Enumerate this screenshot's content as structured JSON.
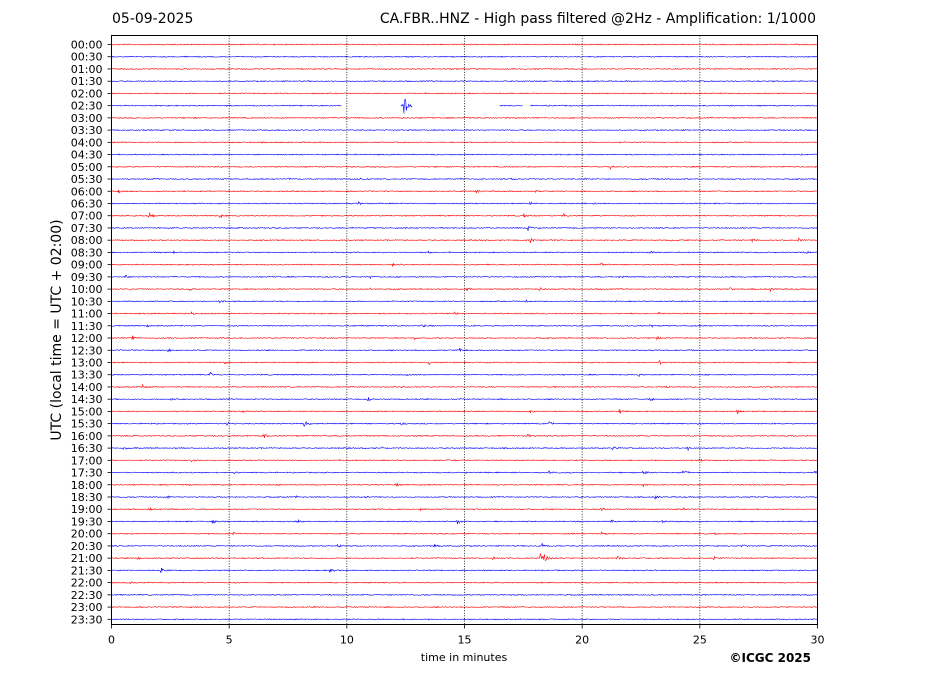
{
  "header": {
    "date": "05-09-2025",
    "title": "CA.FBR..HNZ - High pass filtered @2Hz - Amplification: 1/1000"
  },
  "footer": {
    "copyright": "©ICGC 2025"
  },
  "chart_data": {
    "type": "line",
    "subtype": "helicorder",
    "xlabel": "time in minutes",
    "ylabel": "UTC (local time = UTC + 02:00)",
    "xlim": [
      0,
      30
    ],
    "xticks": [
      0,
      5,
      10,
      15,
      20,
      25,
      30
    ],
    "x_gridlines": [
      5,
      10,
      15,
      20,
      25
    ],
    "grid": "dotted vertical",
    "trace_colors": [
      "#ff0000",
      "#0000ff"
    ],
    "traces": [
      {
        "label": "00:00",
        "color": "#ff0000",
        "events": []
      },
      {
        "label": "00:30",
        "color": "#0000ff",
        "events": []
      },
      {
        "label": "01:00",
        "color": "#ff0000",
        "events": []
      },
      {
        "label": "01:30",
        "color": "#0000ff",
        "events": []
      },
      {
        "label": "02:00",
        "color": "#ff0000",
        "events": []
      },
      {
        "label": "02:30",
        "color": "#0000ff",
        "gaps": [
          [
            9.8,
            12.3
          ],
          [
            12.8,
            16.5
          ],
          [
            17.5,
            17.8
          ]
        ],
        "events": [
          [
            12.4,
            8
          ]
        ]
      },
      {
        "label": "03:00",
        "color": "#ff0000",
        "events": []
      },
      {
        "label": "03:30",
        "color": "#0000ff",
        "events": []
      },
      {
        "label": "04:00",
        "color": "#ff0000",
        "events": []
      },
      {
        "label": "04:30",
        "color": "#0000ff",
        "events": []
      },
      {
        "label": "05:00",
        "color": "#ff0000",
        "events": [
          [
            21.2,
            1.5
          ]
        ]
      },
      {
        "label": "05:30",
        "color": "#0000ff",
        "events": [
          [
            1.8,
            1.2
          ],
          [
            7.5,
            1
          ],
          [
            10.5,
            1.5
          ],
          [
            14.8,
            1.2
          ],
          [
            17,
            1
          ],
          [
            20.1,
            1.3
          ]
        ]
      },
      {
        "label": "06:00",
        "color": "#ff0000",
        "events": [
          [
            0.3,
            1.5
          ],
          [
            15.5,
            1.5
          ],
          [
            18,
            1
          ]
        ]
      },
      {
        "label": "06:30",
        "color": "#0000ff",
        "events": [
          [
            10.5,
            1.5
          ],
          [
            17.8,
            1.5
          ],
          [
            20.5,
            1
          ]
        ]
      },
      {
        "label": "07:00",
        "color": "#ff0000",
        "events": [
          [
            1.6,
            3
          ],
          [
            4.6,
            3
          ],
          [
            17.5,
            1.5
          ],
          [
            19.2,
            1.8
          ]
        ]
      },
      {
        "label": "07:30",
        "color": "#0000ff",
        "events": [
          [
            17.7,
            2
          ]
        ]
      },
      {
        "label": "08:00",
        "color": "#ff0000",
        "events": [
          [
            17.8,
            2
          ],
          [
            23.8,
            1.5
          ],
          [
            27.2,
            2
          ],
          [
            29.2,
            1.5
          ]
        ]
      },
      {
        "label": "08:30",
        "color": "#0000ff",
        "events": [
          [
            2.6,
            1.5
          ],
          [
            13.5,
            1.5
          ],
          [
            22.9,
            1.5
          ],
          [
            29.5,
            2
          ]
        ]
      },
      {
        "label": "09:00",
        "color": "#ff0000",
        "events": [
          [
            11.9,
            1.5
          ],
          [
            20.8,
            1.5
          ]
        ]
      },
      {
        "label": "09:30",
        "color": "#0000ff",
        "events": [
          [
            0.6,
            2
          ],
          [
            9.2,
            1
          ],
          [
            11,
            1.5
          ],
          [
            21.6,
            1.5
          ]
        ]
      },
      {
        "label": "10:00",
        "color": "#ff0000",
        "events": [
          [
            3.3,
            1.5
          ],
          [
            11,
            1
          ],
          [
            15.1,
            2.5
          ],
          [
            18.2,
            1.5
          ],
          [
            26.3,
            1.5
          ],
          [
            28,
            2
          ]
        ]
      },
      {
        "label": "10:30",
        "color": "#0000ff",
        "events": [
          [
            4.6,
            1.5
          ],
          [
            17.6,
            1.8
          ]
        ]
      },
      {
        "label": "11:00",
        "color": "#ff0000",
        "events": [
          [
            3.4,
            1.5
          ],
          [
            14.6,
            1.5
          ],
          [
            23.2,
            1.5
          ]
        ]
      },
      {
        "label": "11:30",
        "color": "#0000ff",
        "events": [
          [
            1.5,
            1.5
          ],
          [
            13.2,
            1.8
          ],
          [
            22.9,
            1.5
          ]
        ]
      },
      {
        "label": "12:00",
        "color": "#ff0000",
        "events": [
          [
            0.9,
            1.5
          ],
          [
            12.9,
            1.5
          ],
          [
            23.2,
            1.5
          ]
        ]
      },
      {
        "label": "12:30",
        "color": "#0000ff",
        "events": [
          [
            2.4,
            1.5
          ],
          [
            14.8,
            1.8
          ],
          [
            24.5,
            1.5
          ]
        ]
      },
      {
        "label": "13:00",
        "color": "#ff0000",
        "events": [
          [
            4.8,
            1.5
          ],
          [
            13.5,
            1.5
          ],
          [
            23.3,
            1.5
          ]
        ]
      },
      {
        "label": "13:30",
        "color": "#0000ff",
        "events": [
          [
            4.2,
            1.5
          ],
          [
            12.5,
            1.5
          ],
          [
            22.4,
            1.5
          ]
        ]
      },
      {
        "label": "14:00",
        "color": "#ff0000",
        "events": [
          [
            1.3,
            1.8
          ],
          [
            12.2,
            1.5
          ],
          [
            23.5,
            1.5
          ]
        ]
      },
      {
        "label": "14:30",
        "color": "#0000ff",
        "events": [
          [
            2.5,
            1.5
          ],
          [
            10.9,
            1.5
          ],
          [
            22.9,
            1.5
          ]
        ]
      },
      {
        "label": "15:00",
        "color": "#ff0000",
        "events": [
          [
            5.6,
            1.5
          ],
          [
            17.8,
            1.5
          ],
          [
            21.6,
            1.8
          ],
          [
            26.6,
            1.5
          ]
        ]
      },
      {
        "label": "15:30",
        "color": "#0000ff",
        "events": [
          [
            4.9,
            1.5
          ],
          [
            8.2,
            3
          ],
          [
            12.3,
            1.5
          ],
          [
            18.6,
            1.5
          ],
          [
            24.9,
            1.5
          ]
        ]
      },
      {
        "label": "16:00",
        "color": "#ff0000",
        "events": [
          [
            6.5,
            1.5
          ],
          [
            17.7,
            1.5
          ],
          [
            24.5,
            1
          ]
        ]
      },
      {
        "label": "16:30",
        "color": "#0000ff",
        "events": [
          [
            0.5,
            1.8
          ],
          [
            11.5,
            1
          ],
          [
            21.3,
            1.5
          ],
          [
            24.5,
            1.5
          ]
        ]
      },
      {
        "label": "17:00",
        "color": "#ff0000",
        "events": [
          [
            3.4,
            1.5
          ],
          [
            14.3,
            1.5
          ],
          [
            25,
            1.5
          ]
        ]
      },
      {
        "label": "17:30",
        "color": "#0000ff",
        "events": [
          [
            5.2,
            1.5
          ],
          [
            15,
            1
          ],
          [
            18.6,
            1.5
          ],
          [
            22.6,
            2.5
          ],
          [
            24.3,
            2.5
          ],
          [
            29.9,
            1.5
          ]
        ]
      },
      {
        "label": "18:00",
        "color": "#ff0000",
        "events": [
          [
            3.2,
            1
          ],
          [
            12.1,
            1.5
          ],
          [
            22.6,
            1.5
          ]
        ]
      },
      {
        "label": "18:30",
        "color": "#0000ff",
        "events": [
          [
            2.4,
            1.5
          ],
          [
            7.8,
            1.2
          ],
          [
            10.8,
            1.5
          ],
          [
            23.1,
            1.5
          ]
        ]
      },
      {
        "label": "19:00",
        "color": "#ff0000",
        "events": [
          [
            1.6,
            1.8
          ],
          [
            13.1,
            1.8
          ],
          [
            20.8,
            2
          ],
          [
            24.3,
            1.5
          ]
        ]
      },
      {
        "label": "19:30",
        "color": "#0000ff",
        "events": [
          [
            4.3,
            1.8
          ],
          [
            7.9,
            1.5
          ],
          [
            14.7,
            2
          ],
          [
            21.2,
            1.5
          ],
          [
            23.4,
            1.2
          ]
        ]
      },
      {
        "label": "20:00",
        "color": "#ff0000",
        "events": [
          [
            5.2,
            1.5
          ],
          [
            20.8,
            1.5
          ],
          [
            25.6,
            1.5
          ]
        ]
      },
      {
        "label": "20:30",
        "color": "#0000ff",
        "events": [
          [
            9.6,
            2
          ],
          [
            13.7,
            1.5
          ],
          [
            18.3,
            1.5
          ],
          [
            26.8,
            1.5
          ]
        ]
      },
      {
        "label": "21:00",
        "color": "#ff0000",
        "events": [
          [
            1.1,
            1.5
          ],
          [
            16.2,
            1.5
          ],
          [
            18.2,
            7.5
          ],
          [
            21.5,
            1.5
          ],
          [
            25.6,
            1.5
          ]
        ]
      },
      {
        "label": "21:30",
        "color": "#0000ff",
        "events": [
          [
            2.1,
            3
          ],
          [
            9.3,
            1.8
          ]
        ]
      },
      {
        "label": "22:00",
        "color": "#ff0000",
        "events": [
          [
            0.8,
            1
          ]
        ]
      },
      {
        "label": "22:30",
        "color": "#0000ff",
        "events": []
      },
      {
        "label": "23:00",
        "color": "#ff0000",
        "events": []
      },
      {
        "label": "23:30",
        "color": "#0000ff",
        "events": []
      }
    ]
  }
}
